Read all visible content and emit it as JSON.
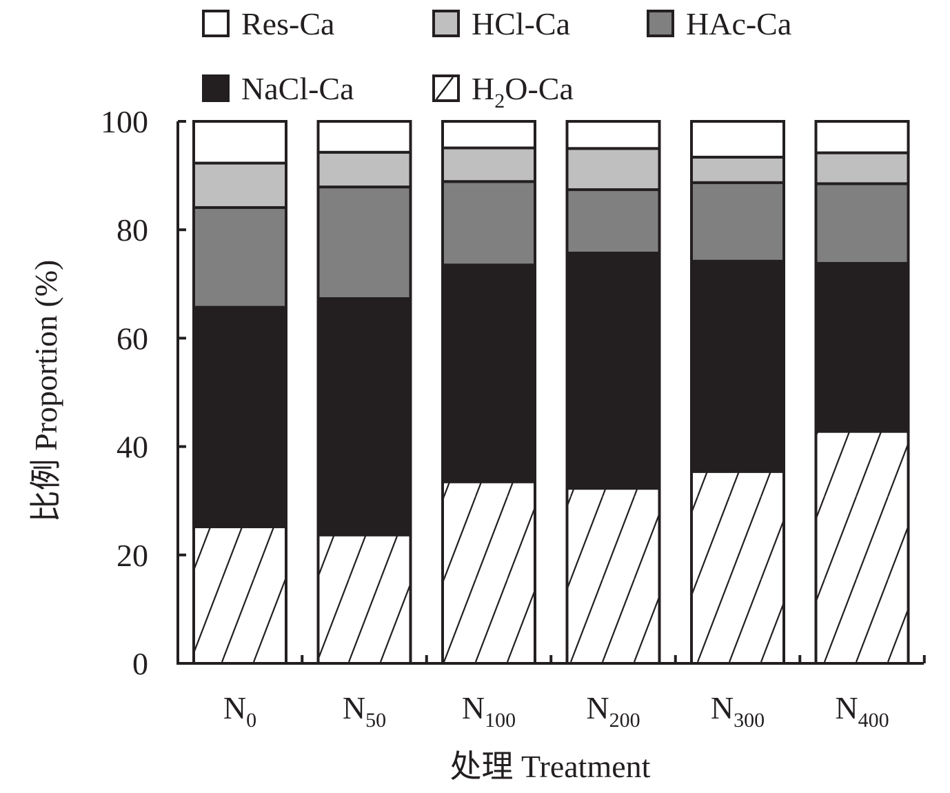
{
  "chart_data": {
    "type": "bar",
    "stacked": true,
    "categories": [
      {
        "base": "N",
        "sub": "0"
      },
      {
        "base": "N",
        "sub": "50"
      },
      {
        "base": "N",
        "sub": "100"
      },
      {
        "base": "N",
        "sub": "200"
      },
      {
        "base": "N",
        "sub": "300"
      },
      {
        "base": "N",
        "sub": "400"
      }
    ],
    "series": [
      {
        "name": "H2O-Ca",
        "name_base": "H",
        "name_sub": "2",
        "name_rest": "O-Ca",
        "fill": "hatch",
        "values": [
          25.2,
          23.7,
          33.5,
          32.3,
          35.4,
          42.8
        ]
      },
      {
        "name": "NaCl-Ca",
        "fill": "#231f20",
        "values": [
          40.5,
          43.6,
          40.0,
          43.4,
          38.8,
          31.0
        ]
      },
      {
        "name": "HAc-Ca",
        "fill": "#808080",
        "values": [
          18.4,
          20.6,
          15.4,
          11.7,
          14.5,
          14.7
        ]
      },
      {
        "name": "HCl-Ca",
        "fill": "#bfbfbf",
        "values": [
          8.2,
          6.4,
          6.2,
          7.6,
          4.7,
          5.7
        ]
      },
      {
        "name": "Res-Ca",
        "fill": "#ffffff",
        "values": [
          7.7,
          5.7,
          4.9,
          5.0,
          6.6,
          5.8
        ]
      }
    ],
    "legend_order": [
      "Res-Ca",
      "HCl-Ca",
      "HAc-Ca",
      "NaCl-Ca",
      "H2O-Ca"
    ],
    "legend_placement": "top",
    "ylim": [
      0,
      100
    ],
    "yticks": [
      0,
      20,
      40,
      60,
      80,
      100
    ],
    "ylabel": "比例 Proportion (%)",
    "xlabel": "处理 Treatment",
    "grid": false,
    "colors": {
      "ink": "#231f20"
    }
  }
}
